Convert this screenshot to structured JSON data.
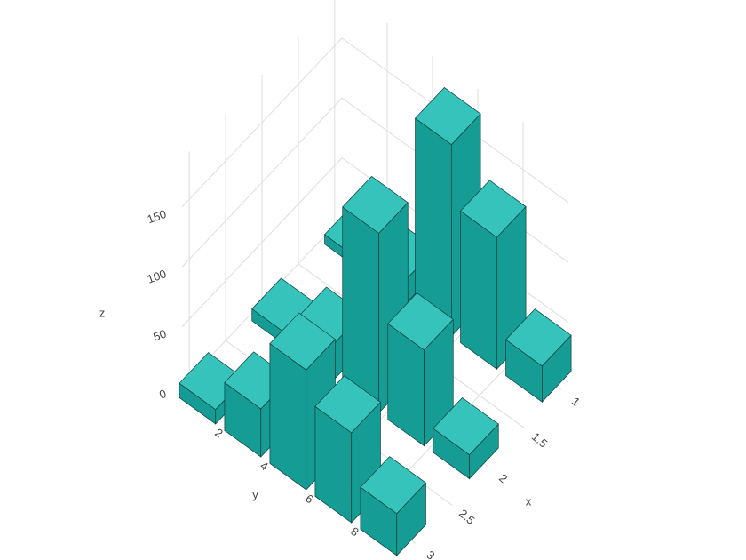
{
  "chart_data": {
    "type": "bar3d",
    "x": [
      1,
      1,
      1,
      1,
      1,
      2,
      2,
      2,
      2,
      2,
      3,
      3,
      3,
      3,
      3
    ],
    "y": [
      1,
      3,
      5,
      7,
      9,
      1,
      3,
      5,
      7,
      9,
      1,
      3,
      5,
      7,
      9
    ],
    "z": [
      8,
      20,
      160,
      110,
      30,
      10,
      30,
      150,
      80,
      20,
      12,
      40,
      100,
      75,
      35
    ],
    "color": "#159c95",
    "xlim": [
      0.9,
      3.1
    ],
    "ylim": [
      0,
      10
    ],
    "zlim": [
      0,
      190
    ],
    "xticks": [
      1,
      1.5,
      2,
      2.5,
      3
    ],
    "yticks": [
      2,
      4,
      6,
      8
    ],
    "zticks": [
      0,
      50,
      100,
      150
    ],
    "x_label": "x",
    "y_label": "y",
    "z_label": "z",
    "grid": true
  }
}
